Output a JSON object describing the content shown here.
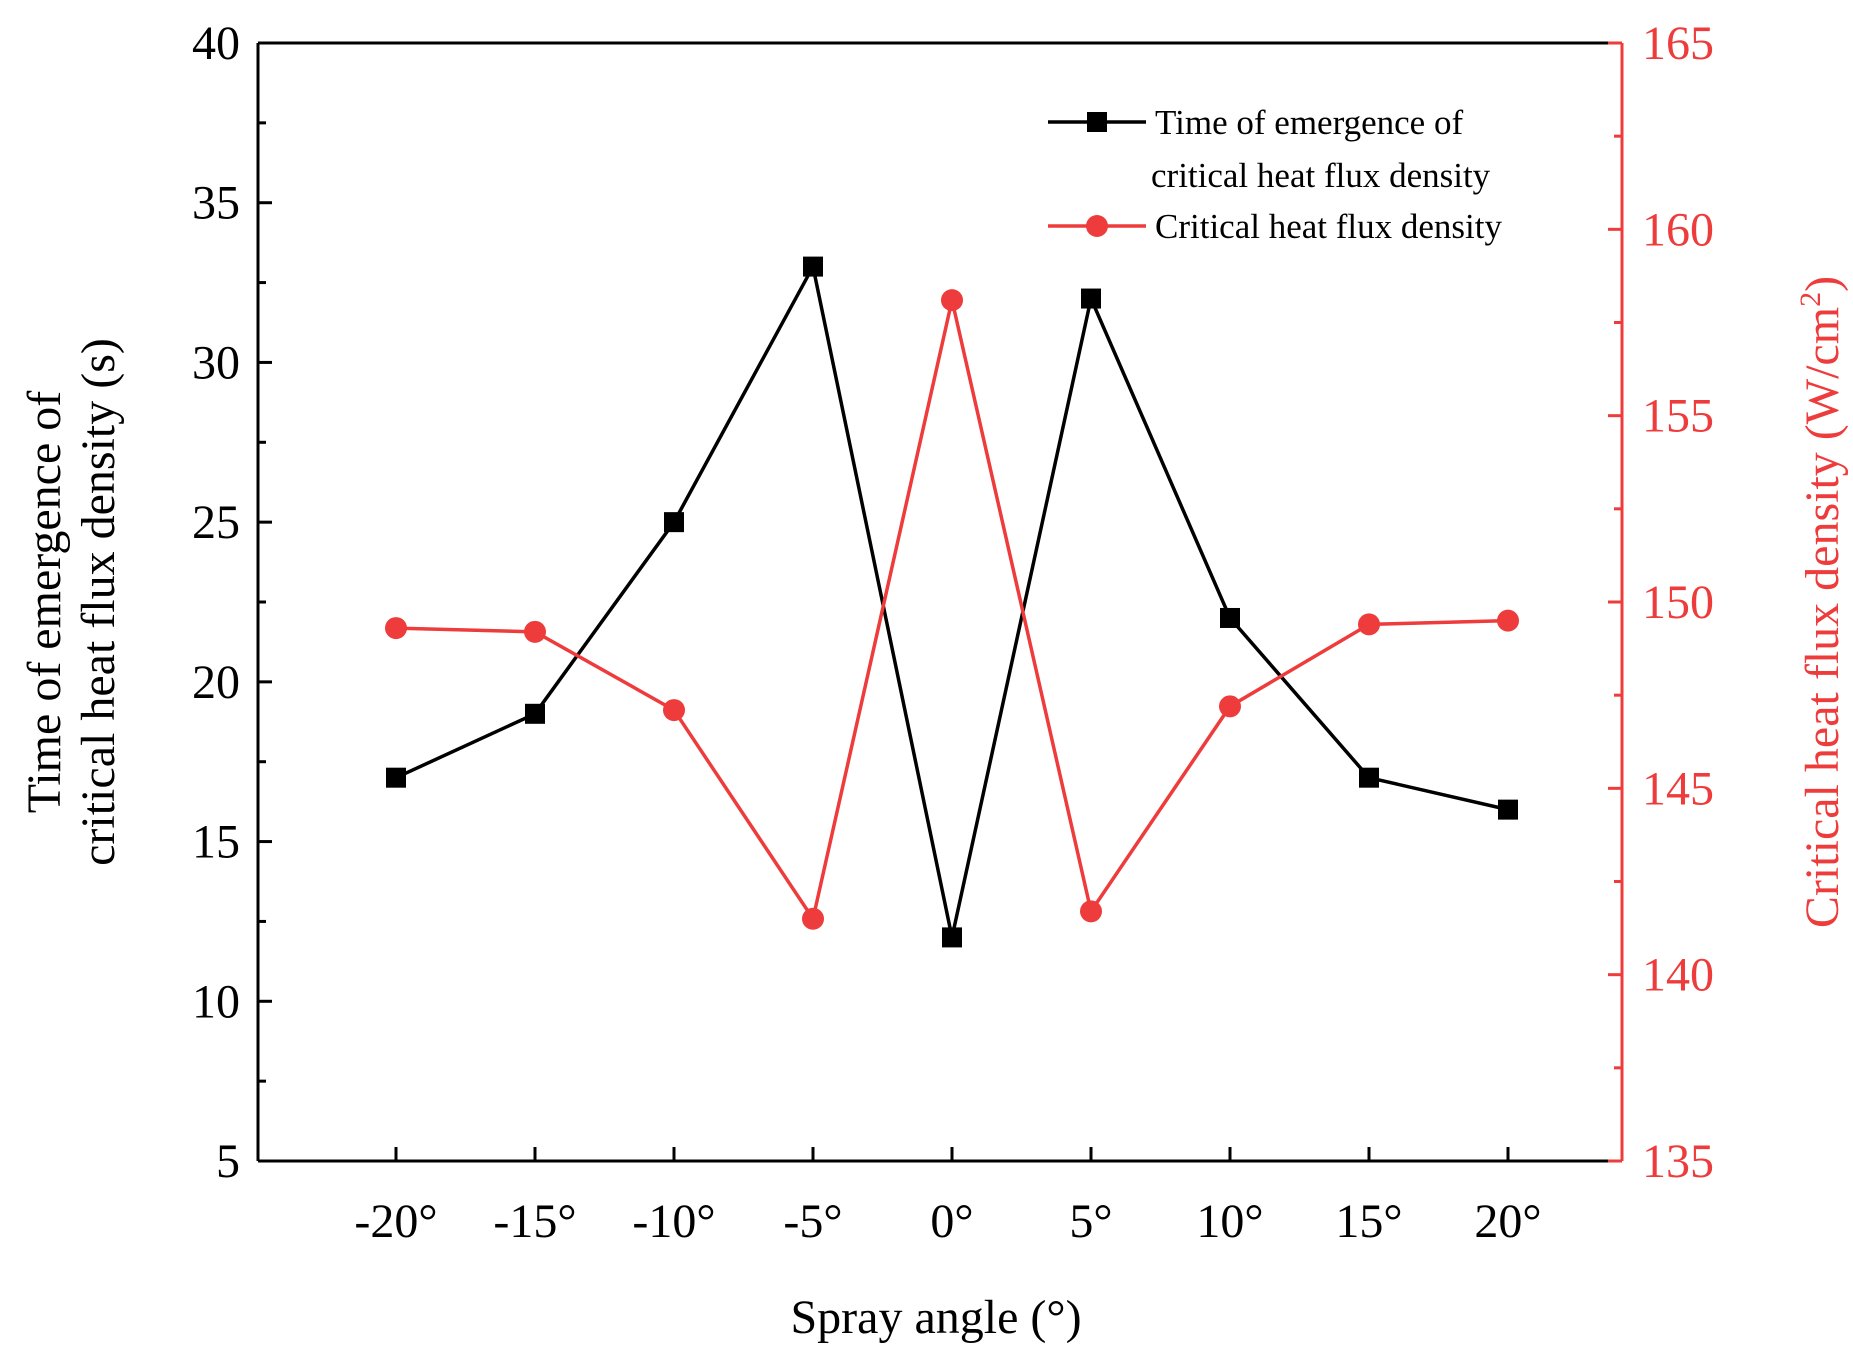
{
  "chart_data": {
    "type": "line",
    "title": "",
    "xlabel": "Spray angle (°)",
    "categories": [
      "-20°",
      "-15°",
      "-10°",
      "-5°",
      "0°",
      "5°",
      "10°",
      "15°",
      "20°"
    ],
    "ylabel_left": {
      "line1": "Time of emergence of",
      "line2": "critical heat flux density (s)"
    },
    "ylabel_right": {
      "main": "Critical heat flux density (W/cm",
      "sup": "2",
      "close": ")"
    },
    "ylim_left": [
      5,
      40
    ],
    "ylim_right": [
      135,
      165
    ],
    "yticks_left": [
      "5",
      "10",
      "15",
      "20",
      "25",
      "30",
      "35",
      "40"
    ],
    "yticks_right": [
      "135",
      "140",
      "145",
      "150",
      "155",
      "160",
      "165"
    ],
    "grid": false,
    "legend_position": "top-right",
    "series": [
      {
        "name": "Time of emergence of critical heat flux density",
        "legend_lines": [
          "Time of emergence of",
          "critical heat flux density"
        ],
        "axis": "left",
        "marker": "square",
        "color": "#000000",
        "values": [
          17,
          19,
          25,
          33,
          12,
          32,
          22,
          17,
          16
        ]
      },
      {
        "name": "Critical heat flux density",
        "legend_lines": [
          "Critical heat flux density"
        ],
        "axis": "right",
        "marker": "circle",
        "color": "#ee3b3b",
        "values": [
          149.3,
          149.2,
          147.1,
          141.5,
          158.1,
          141.7,
          147.2,
          149.4,
          149.5
        ]
      }
    ]
  }
}
